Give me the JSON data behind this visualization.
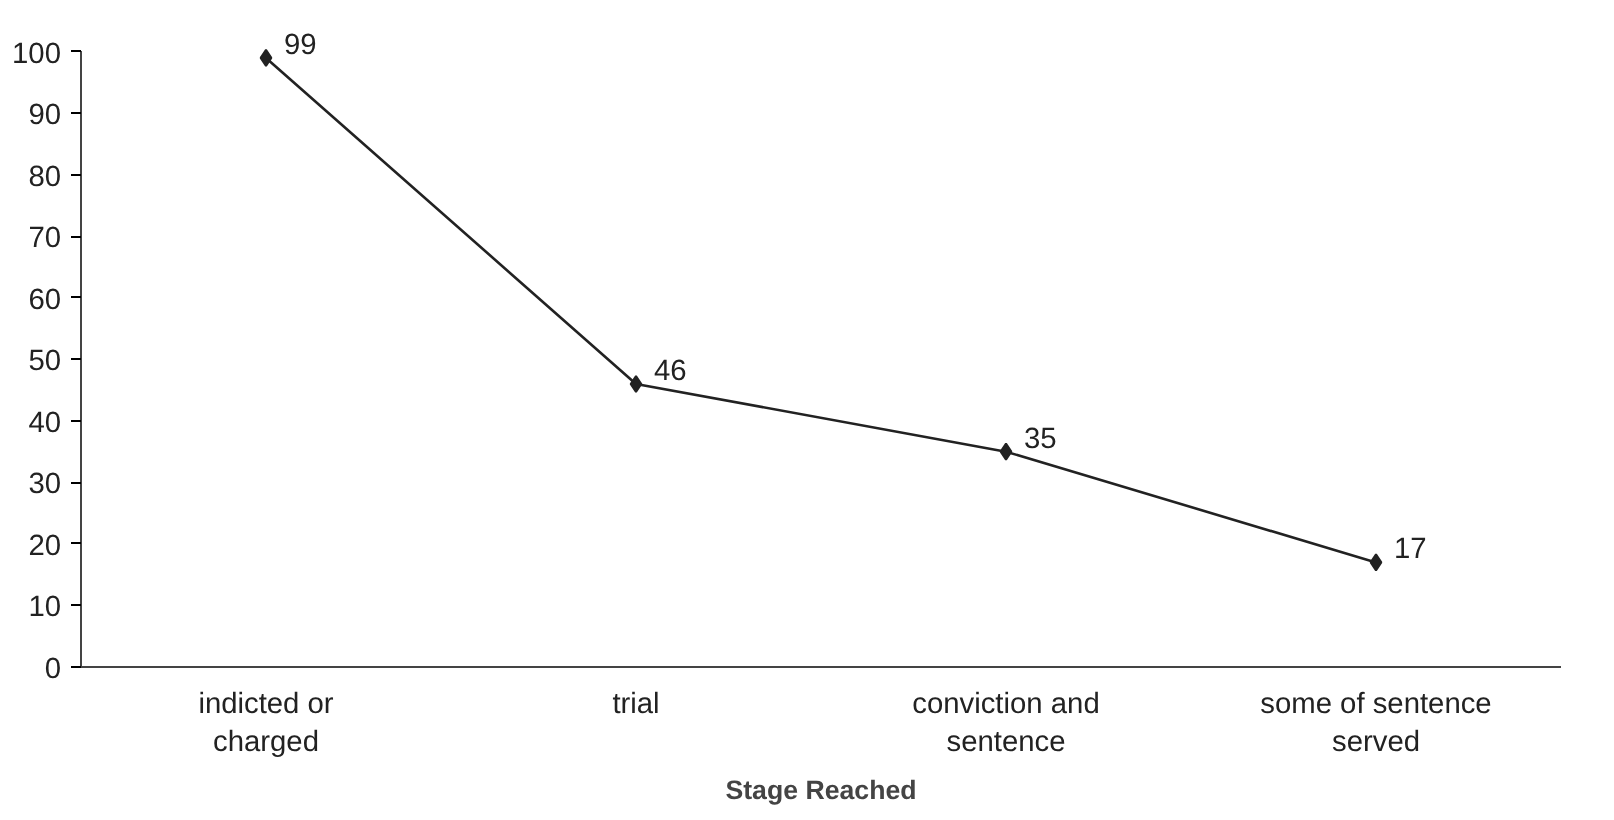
{
  "chart_data": {
    "type": "line",
    "xlabel": "Stage Reached",
    "categories": [
      "indicted or charged",
      "trial",
      "conviction and sentence",
      "some of sentence served"
    ],
    "series": [
      {
        "color": "#222222",
        "values": [
          99,
          46,
          35,
          17
        ]
      }
    ],
    "ylim": [
      0,
      100
    ],
    "yticks": [
      0,
      10,
      20,
      30,
      40,
      50,
      60,
      70,
      80,
      90,
      100
    ],
    "grid": false,
    "marker": "diamond",
    "line_style": "solid",
    "data_labels": true
  }
}
